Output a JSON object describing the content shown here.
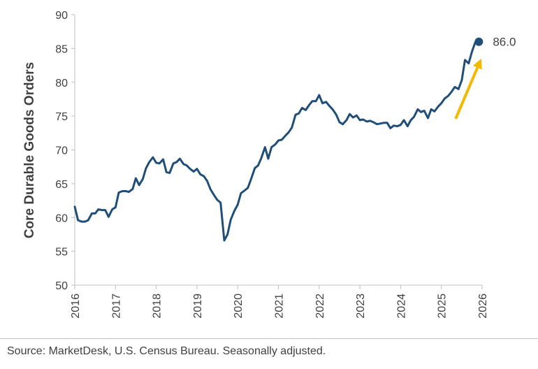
{
  "chart_data": {
    "type": "line",
    "ylabel": "Core Durable Goods Orders",
    "ylim": [
      50,
      90
    ],
    "yticks": [
      50,
      55,
      60,
      65,
      70,
      75,
      80,
      85,
      90
    ],
    "xlim": [
      2016,
      2026
    ],
    "xticks": [
      "2016",
      "2017",
      "2018",
      "2019",
      "2020",
      "2021",
      "2022",
      "2023",
      "2024",
      "2025",
      "2026"
    ],
    "line_color": "#1f4e79",
    "arrow_color": "#f5b800",
    "end_label": "86.0",
    "series": [
      {
        "x": [
          2016.0,
          2016.08,
          2016.17,
          2016.25,
          2016.33,
          2016.42,
          2016.5,
          2016.58,
          2016.67,
          2016.75,
          2016.83,
          2016.92,
          2017.0,
          2017.08,
          2017.17,
          2017.25,
          2017.33,
          2017.42,
          2017.5,
          2017.58,
          2017.67,
          2017.75,
          2017.83,
          2017.92,
          2018.0,
          2018.08,
          2018.17,
          2018.25,
          2018.33,
          2018.42,
          2018.5,
          2018.58,
          2018.67,
          2018.75,
          2018.83,
          2018.92,
          2019.0,
          2019.08,
          2019.17,
          2019.25,
          2019.33,
          2019.42,
          2019.5,
          2019.58,
          2019.67,
          2019.75,
          2019.83,
          2019.92,
          2020.0,
          2020.08,
          2020.17,
          2020.25,
          2020.33,
          2020.42,
          2020.5,
          2020.58,
          2020.67,
          2020.75,
          2020.83,
          2020.92,
          2021.0,
          2021.08,
          2021.17,
          2021.25,
          2021.33,
          2021.42,
          2021.5,
          2021.58,
          2021.67,
          2021.75,
          2021.83,
          2021.92,
          2022.0,
          2022.08,
          2022.17,
          2022.25,
          2022.33,
          2022.42,
          2022.5,
          2022.58,
          2022.67,
          2022.75,
          2022.83,
          2022.92,
          2023.0,
          2023.08,
          2023.17,
          2023.25,
          2023.33,
          2023.42,
          2023.5,
          2023.58,
          2023.67,
          2023.75,
          2023.83,
          2023.92,
          2024.0,
          2024.08,
          2024.17,
          2024.25,
          2024.33,
          2024.42,
          2024.5,
          2024.58,
          2024.67,
          2024.75,
          2024.83,
          2024.92,
          2025.0,
          2025.08,
          2025.17,
          2025.25,
          2025.33,
          2025.42,
          2025.5,
          2025.58,
          2025.67,
          2025.75,
          2025.83,
          2025.92
        ],
        "values": [
          61.6,
          59.6,
          59.4,
          59.4,
          59.6,
          60.6,
          60.6,
          61.2,
          61.1,
          61.1,
          60.1,
          61.2,
          61.5,
          63.7,
          63.9,
          63.9,
          63.8,
          64.2,
          65.8,
          64.8,
          65.7,
          67.3,
          68.2,
          68.9,
          68.1,
          68.0,
          68.6,
          66.7,
          66.6,
          68.0,
          68.2,
          68.7,
          67.9,
          67.7,
          67.2,
          66.8,
          67.2,
          66.4,
          66.1,
          65.4,
          64.2,
          63.3,
          62.6,
          62.2,
          56.6,
          57.5,
          59.7,
          61.0,
          61.9,
          63.6,
          64.0,
          64.4,
          65.7,
          67.3,
          67.7,
          68.8,
          70.4,
          68.7,
          70.4,
          70.8,
          71.4,
          71.5,
          72.1,
          72.6,
          73.3,
          75.2,
          75.4,
          76.2,
          75.9,
          76.6,
          77.2,
          77.2,
          78.1,
          76.9,
          77.1,
          76.5,
          76.0,
          75.2,
          74.1,
          73.8,
          74.4,
          75.3,
          74.8,
          75.1,
          74.4,
          74.5,
          74.2,
          74.3,
          74.1,
          73.8,
          73.9,
          74.0,
          74.0,
          73.2,
          73.6,
          73.5,
          73.7,
          74.4,
          73.5,
          74.4,
          74.9,
          76.0,
          75.6,
          75.8,
          74.7,
          76.0,
          75.7,
          76.4,
          76.9,
          77.6,
          78.0,
          78.6,
          79.3,
          79.0,
          80.3,
          83.3,
          82.8,
          84.5,
          85.9,
          86.0
        ]
      }
    ]
  },
  "footer": {
    "source": "Source: MarketDesk, U.S. Census Bureau. Seasonally adjusted."
  }
}
